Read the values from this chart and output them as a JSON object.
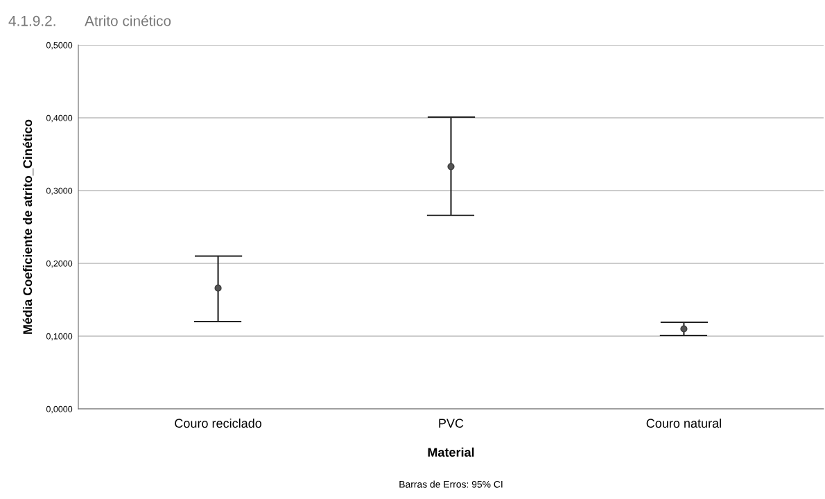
{
  "chart_data": {
    "type": "scatter",
    "title": "4.1.9.2.       Atrito cinético",
    "xlabel": "Material",
    "ylabel": "Média Coeficiente de atrito_Cinético",
    "annotations": [
      "Barras de Erros: 95% CI"
    ],
    "categories": [
      "Couro reciclado",
      "PVC",
      "Couro natural"
    ],
    "values": [
      0.166,
      0.333,
      0.11
    ],
    "errors": [
      [
        0.12,
        0.21
      ],
      [
        0.266,
        0.401
      ],
      [
        0.101,
        0.119
      ]
    ],
    "color": "#3c3c3c",
    "marker": "circle",
    "grid": "y",
    "ylim": [
      0,
      0.5
    ],
    "yticks": [
      {
        "value": 0,
        "label": "0,0000"
      },
      {
        "value": 0.1,
        "label": "0,1000"
      },
      {
        "value": 0.2,
        "label": "0,2000"
      },
      {
        "value": 0.3,
        "label": "0,3000"
      },
      {
        "value": 0.4,
        "label": "0,4000"
      },
      {
        "value": 0.5,
        "label": "0,5000"
      }
    ]
  }
}
